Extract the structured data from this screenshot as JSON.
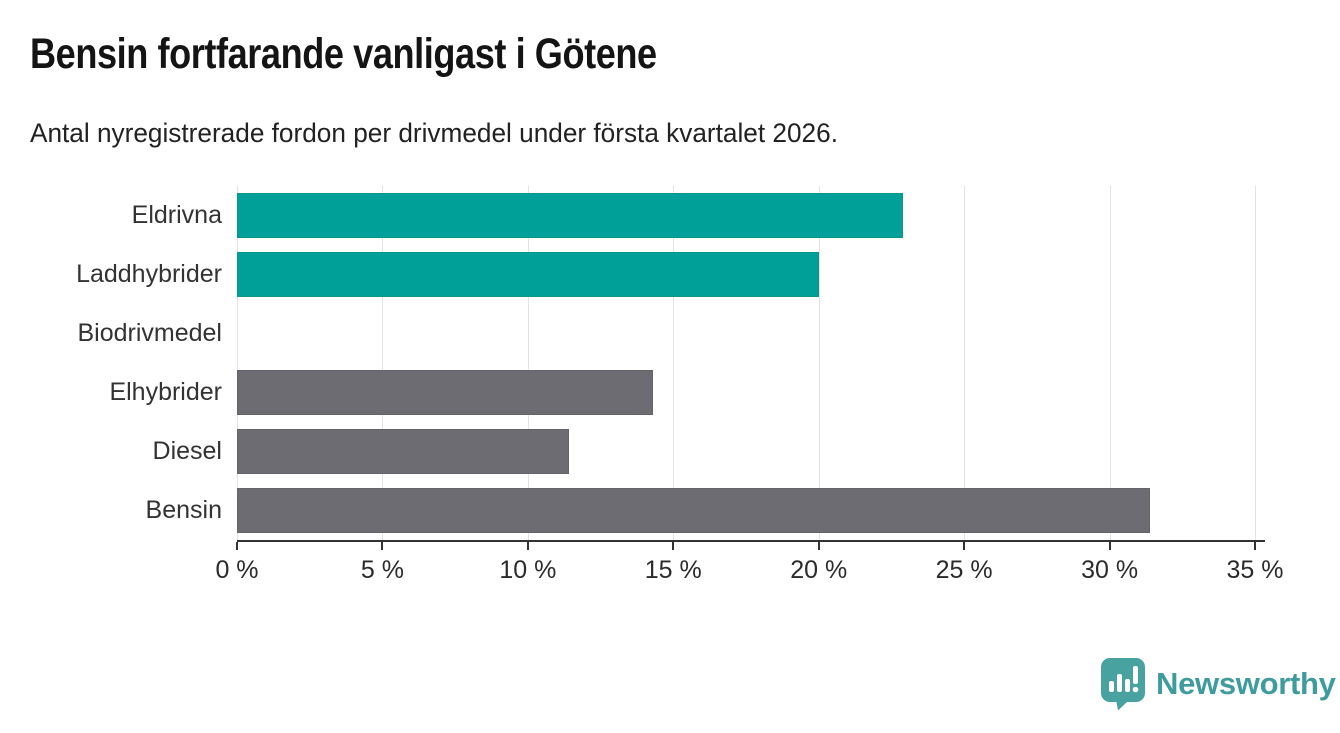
{
  "header": {
    "title": "Bensin fortfarande vanligast i Götene",
    "subtitle": "Antal nyregistrerade fordon per drivmedel under första kvartalet 2026."
  },
  "chart_data": {
    "type": "bar",
    "orientation": "horizontal",
    "title": "Bensin fortfarande vanligast i Götene",
    "subtitle": "Antal nyregistrerade fordon per drivmedel under första kvartalet 2026.",
    "categories": [
      "Eldrivna",
      "Laddhybrider",
      "Biodrivmedel",
      "Elhybrider",
      "Diesel",
      "Bensin"
    ],
    "values": [
      22.9,
      20.0,
      0.0,
      14.3,
      11.4,
      31.4
    ],
    "bar_colors": [
      "#00a099",
      "#00a099",
      "#00a099",
      "#6c6c72",
      "#6c6c72",
      "#6c6c72"
    ],
    "bar_edge_colors": [
      "#0a958f",
      "#0a958f",
      "#0a958f",
      "#63636a",
      "#63636a",
      "#63636a"
    ],
    "unit": "%",
    "xlabel": "",
    "ylabel": "",
    "xlim": [
      0,
      35
    ],
    "x_ticks": [
      0,
      5,
      10,
      15,
      20,
      25,
      30,
      35
    ],
    "x_tick_labels": [
      "0 %",
      "5 %",
      "10 %",
      "15 %",
      "20 %",
      "25 %",
      "30 %",
      "35 %"
    ],
    "grid": "vertical-light",
    "legend": "none"
  },
  "branding": {
    "logo_text": "Newsworthy",
    "logo_icon": "newsworthy-pin-barchart-icon",
    "logo_text_color": "#3f9c9c",
    "logo_icon_color": "#47a2a0"
  },
  "colors": {
    "accent_teal": "#00a099",
    "bar_gray": "#6c6c72",
    "gridline": "#e3e3e3",
    "axis": "#333333",
    "title_text": "#141414",
    "body_text": "#222222",
    "label_text": "#333333"
  }
}
